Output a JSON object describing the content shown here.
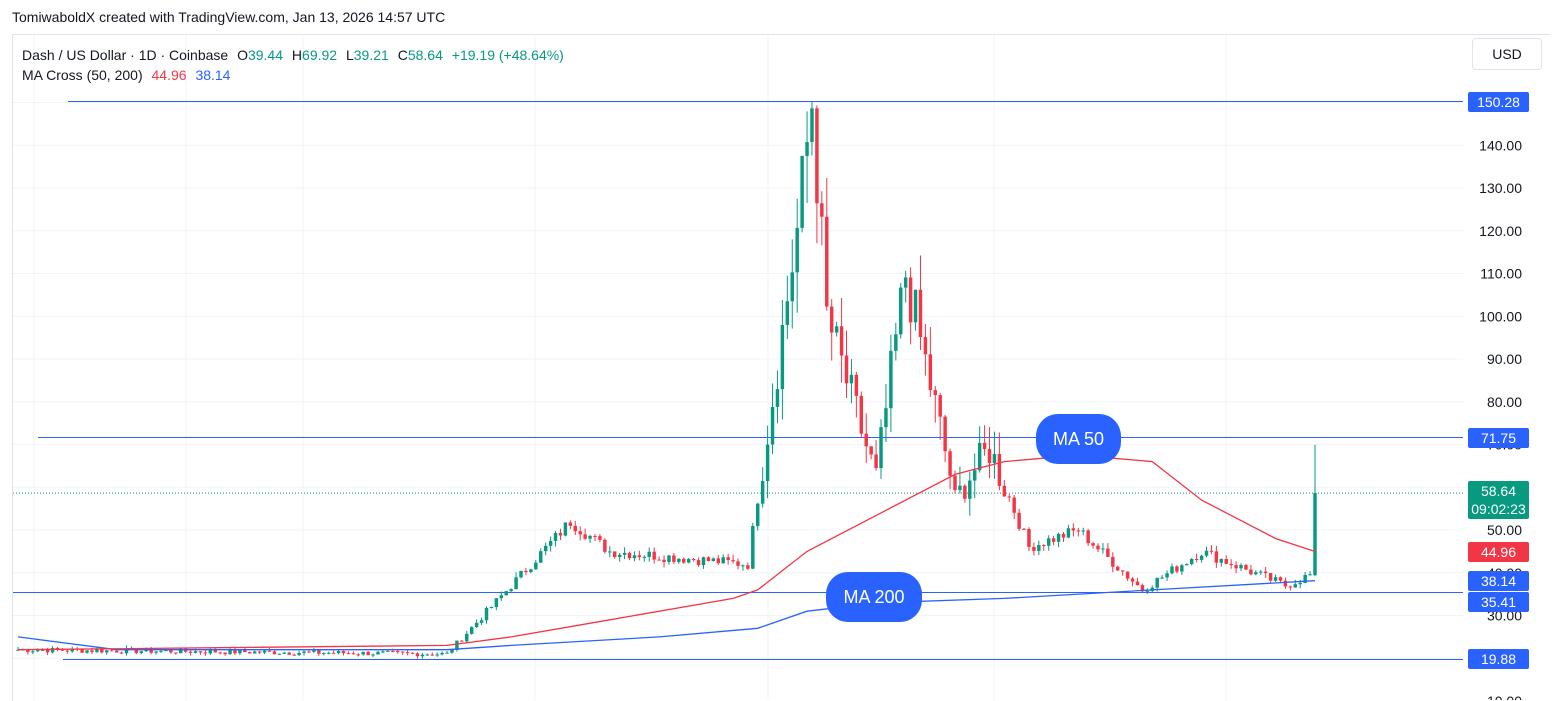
{
  "header": {
    "credit": "TomiwaboldX created with TradingView.com, Jan 13, 2026 14:57 UTC"
  },
  "legend": {
    "symbol": "Dash / US Dollar · 1D · Coinbase",
    "o_label": "O",
    "o_value": "39.44",
    "h_label": "H",
    "h_value": "69.92",
    "l_label": "L",
    "l_value": "39.21",
    "c_label": "C",
    "c_value": "58.64",
    "change": "+19.19 (+48.64%)",
    "indicator": "MA Cross (50, 200)",
    "ma50_value": "44.96",
    "ma200_value": "38.14"
  },
  "currency_button": "USD",
  "colors": {
    "up": "#089981",
    "down": "#f23645",
    "ma50": "#f23645",
    "ma200": "#2962ff",
    "hline": "#2962ff",
    "grid": "#f0f3fa"
  },
  "chart_data": {
    "type": "candlestick",
    "y_axis_ticks": [
      "10.00",
      "30.00",
      "40.00",
      "50.00",
      "60.00",
      "70.00",
      "80.00",
      "90.00",
      "100.00",
      "110.00",
      "120.00",
      "130.00",
      "140.00"
    ],
    "ylim": [
      10,
      160
    ],
    "horizontal_lines": [
      150.28,
      71.75,
      35.41,
      19.88
    ],
    "price_labels": [
      {
        "text": "150.28",
        "value": 150.28,
        "kind": "hline"
      },
      {
        "text": "71.75",
        "value": 71.75,
        "kind": "hline"
      },
      {
        "text": "58.64",
        "value": 58.64,
        "kind": "last",
        "sub": "09:02:23"
      },
      {
        "text": "44.96",
        "value": 44.96,
        "kind": "ma50"
      },
      {
        "text": "38.14",
        "value": 38.14,
        "kind": "ma200"
      },
      {
        "text": "35.41",
        "value": 35.41,
        "kind": "hline"
      },
      {
        "text": "19.88",
        "value": 19.88,
        "kind": "hline"
      }
    ],
    "last_price": 58.64,
    "annotations": [
      {
        "text": "MA 50"
      },
      {
        "text": "MA 200"
      }
    ],
    "key_points": [
      {
        "date_index": 0,
        "close": 22
      },
      {
        "date_index": 87,
        "close": 21
      },
      {
        "date_index": 100,
        "close": 37
      },
      {
        "date_index": 112,
        "close": 52
      },
      {
        "date_index": 120,
        "close": 45
      },
      {
        "date_index": 148,
        "close": 42
      },
      {
        "date_index": 158,
        "close": 120
      },
      {
        "date_index": 161,
        "close": 150.28
      },
      {
        "date_index": 164,
        "close": 100
      },
      {
        "date_index": 174,
        "close": 62
      },
      {
        "date_index": 180,
        "close": 110
      },
      {
        "date_index": 190,
        "close": 58
      },
      {
        "date_index": 197,
        "close": 69
      },
      {
        "date_index": 205,
        "close": 46
      },
      {
        "date_index": 215,
        "close": 50
      },
      {
        "date_index": 228,
        "close": 36
      },
      {
        "date_index": 240,
        "close": 45
      },
      {
        "date_index": 257,
        "close": 37
      },
      {
        "date_index": 262,
        "close": 39.44
      },
      {
        "date_index": 263,
        "close": 58.64
      }
    ],
    "ma50_points": [
      [
        0,
        22
      ],
      [
        87,
        23
      ],
      [
        100,
        25
      ],
      [
        120,
        29
      ],
      [
        145,
        34
      ],
      [
        150,
        36
      ],
      [
        160,
        45
      ],
      [
        175,
        54
      ],
      [
        190,
        63
      ],
      [
        200,
        66
      ],
      [
        210,
        67
      ],
      [
        220,
        67
      ],
      [
        230,
        66
      ],
      [
        240,
        57
      ],
      [
        255,
        48
      ],
      [
        263,
        44.96
      ]
    ],
    "ma200_points": [
      [
        0,
        25
      ],
      [
        20,
        22
      ],
      [
        87,
        22
      ],
      [
        100,
        23
      ],
      [
        130,
        25
      ],
      [
        150,
        27
      ],
      [
        160,
        31
      ],
      [
        175,
        33
      ],
      [
        200,
        34
      ],
      [
        230,
        36
      ],
      [
        263,
        38.14
      ]
    ]
  }
}
